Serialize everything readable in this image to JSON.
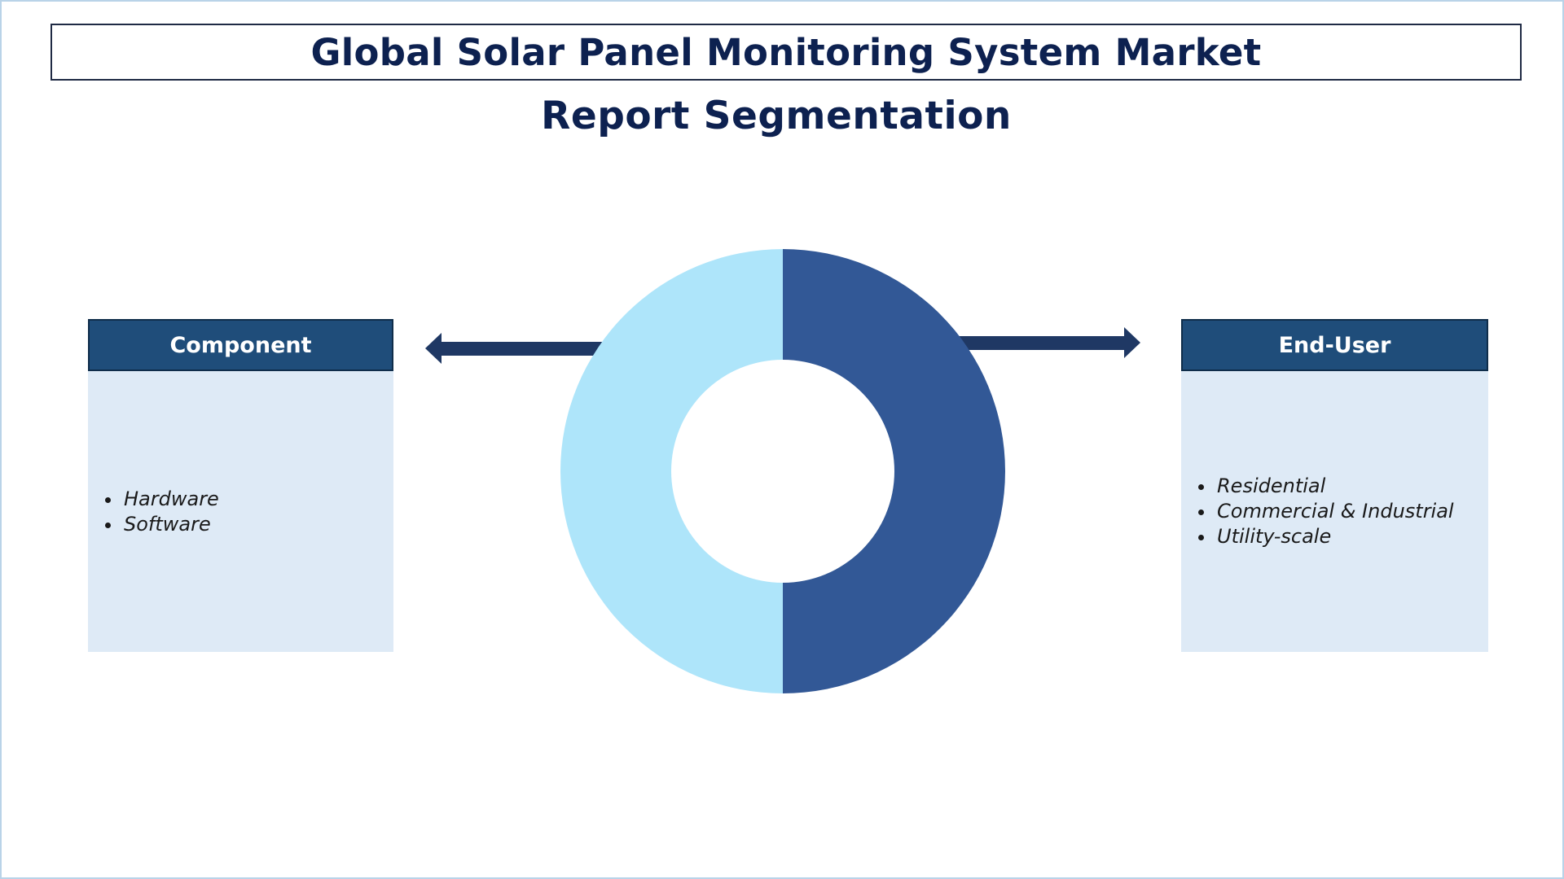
{
  "title": "Global Solar Panel Monitoring System Market",
  "subtitle": "Report Segmentation",
  "segments": [
    {
      "label": "Component",
      "items": [
        "Hardware",
        "Software"
      ]
    },
    {
      "label": "End-User",
      "items": [
        "Residential",
        "Commercial & Industrial",
        "Utility-scale"
      ]
    }
  ],
  "colors": {
    "title_text": "#0d2150",
    "header_bg": "#1f4d7a",
    "body_bg": "#deeaf6",
    "donut_left": "#aee5fa",
    "donut_right": "#325896",
    "arrow": "#1f3864"
  }
}
